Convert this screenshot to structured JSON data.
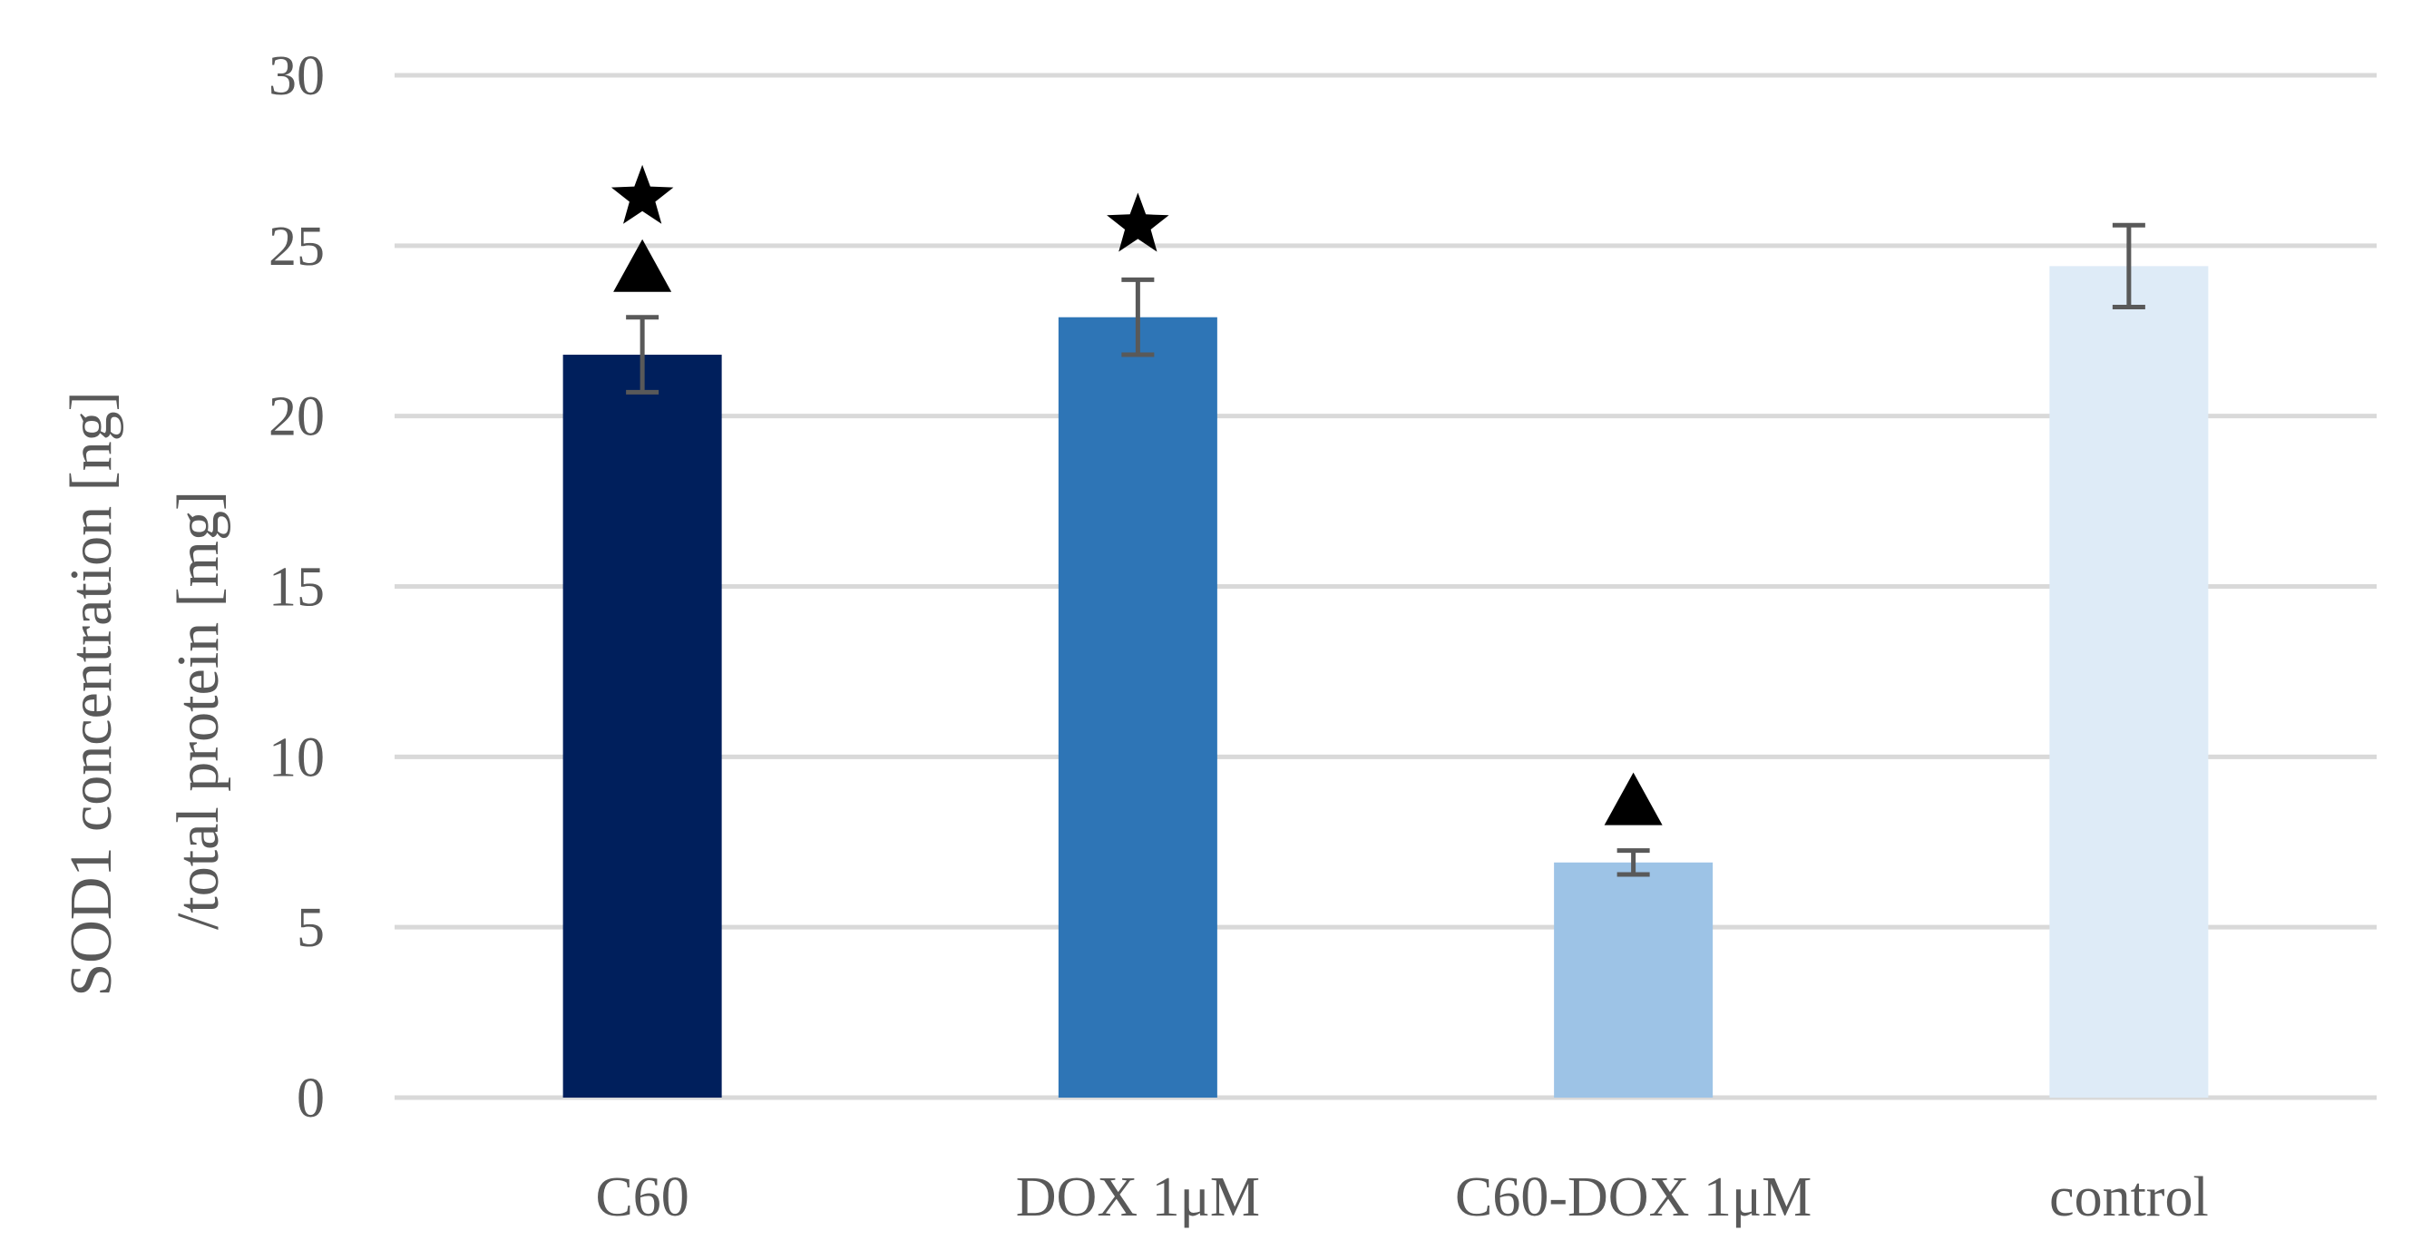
{
  "chart_data": {
    "type": "bar",
    "categories": [
      "C60",
      "DOX 1μM",
      "C60-DOX 1μM",
      "control"
    ],
    "values": [
      21.8,
      22.9,
      6.9,
      24.4
    ],
    "errors": [
      1.1,
      1.1,
      0.35,
      1.2
    ],
    "colors": [
      "#001f5c",
      "#2e75b6",
      "#9dc3e6",
      "#deebf7"
    ],
    "markers": [
      [
        "star",
        "triangle"
      ],
      [
        "star"
      ],
      [
        "triangle"
      ],
      []
    ],
    "ylabel_line1": "SOD1  concentration [ng]",
    "ylabel_line2": "/total protein [mg]",
    "xlabel": "",
    "ylim": [
      0,
      30
    ],
    "yticks": [
      0,
      5,
      10,
      15,
      20,
      25,
      30
    ],
    "grid": true,
    "legend": "none"
  }
}
